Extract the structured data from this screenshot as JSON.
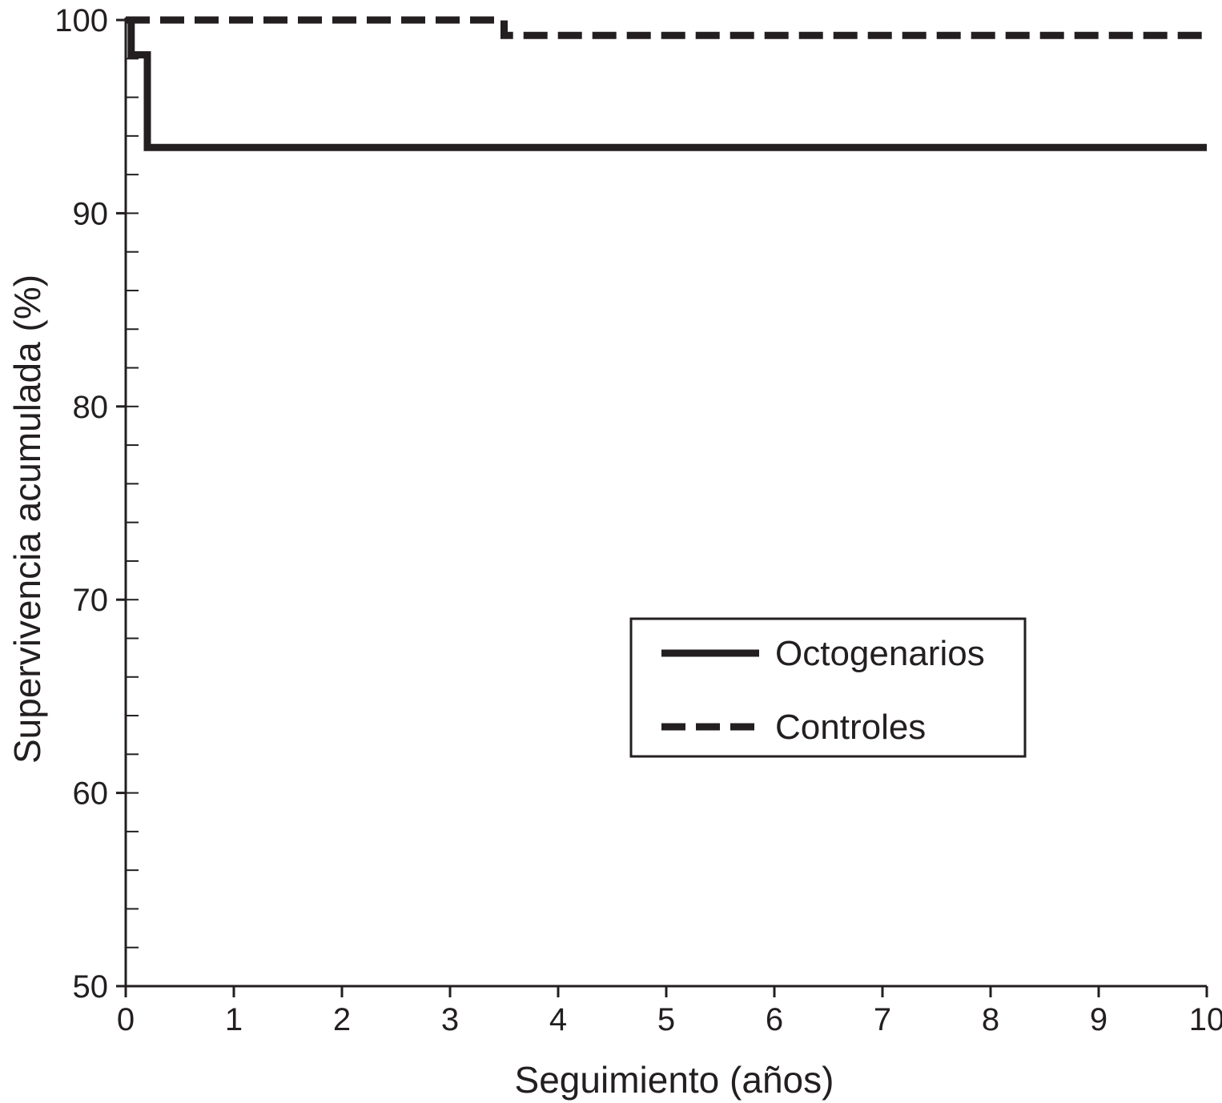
{
  "chart_data": {
    "type": "line",
    "step": true,
    "title": "",
    "xlabel": "Seguimiento (años)",
    "ylabel": "Supervivencia acumulada (%)",
    "xlim": [
      0,
      10
    ],
    "ylim": [
      50,
      100
    ],
    "x_ticks": [
      0,
      1,
      2,
      3,
      4,
      5,
      6,
      7,
      8,
      9,
      10
    ],
    "y_ticks": [
      50,
      60,
      70,
      80,
      90,
      100
    ],
    "y_minor_step": 2,
    "grid": false,
    "legend_position": "center-right",
    "series": [
      {
        "name": "Octogenarios",
        "style": "solid",
        "color": "#231f20",
        "points": [
          [
            0,
            100
          ],
          [
            0.05,
            100
          ],
          [
            0.05,
            98.2
          ],
          [
            0.2,
            98.2
          ],
          [
            0.2,
            93.4
          ],
          [
            10,
            93.4
          ]
        ]
      },
      {
        "name": "Controles",
        "style": "dashed",
        "color": "#231f20",
        "points": [
          [
            0,
            100
          ],
          [
            3.5,
            100
          ],
          [
            3.5,
            99.2
          ],
          [
            10,
            99.2
          ]
        ]
      }
    ]
  }
}
